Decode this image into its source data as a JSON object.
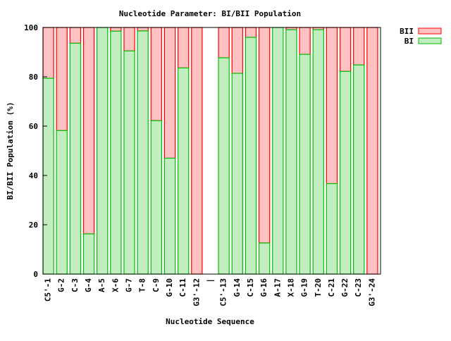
{
  "chart_data": {
    "type": "bar",
    "stacked": true,
    "title": "Nucleotide Parameter: BI/BII Population",
    "xlabel": "Nucleotide Sequence",
    "ylabel": "BI/BII Population (%)",
    "ylim": [
      0,
      100
    ],
    "yticks": [
      0,
      20,
      40,
      60,
      80,
      100
    ],
    "legend_position": "top-right (outside plot)",
    "categories": [
      "C5'-1",
      "G-2",
      "C-3",
      "G-4",
      "A-5",
      "X-6",
      "G-7",
      "T-8",
      "C-9",
      "G-10",
      "C-11",
      "G3'-12",
      "|",
      "C5'-13",
      "G-14",
      "C-15",
      "G-16",
      "A-17",
      "X-18",
      "G-19",
      "T-20",
      "C-21",
      "G-22",
      "C-23",
      "G3'-24"
    ],
    "series": [
      {
        "name": "BI",
        "fill": "#c1edc1",
        "stroke": "#00c000",
        "values": [
          79.4,
          58.2,
          93.6,
          16.3,
          100,
          98.5,
          90.5,
          98.6,
          62.2,
          47.0,
          83.6,
          0,
          null,
          87.7,
          81.4,
          96.0,
          12.6,
          100,
          99.1,
          89.1,
          99.1,
          36.7,
          82.2,
          84.8,
          0
        ]
      },
      {
        "name": "BII",
        "fill": "#ffc1c1",
        "stroke": "#ff0000",
        "values": [
          20.6,
          41.8,
          6.4,
          83.7,
          0,
          1.5,
          9.5,
          1.4,
          37.8,
          53.0,
          16.4,
          100,
          null,
          12.3,
          18.6,
          4.0,
          87.4,
          0,
          0.9,
          10.9,
          0.9,
          63.3,
          17.8,
          15.2,
          100
        ]
      }
    ]
  }
}
